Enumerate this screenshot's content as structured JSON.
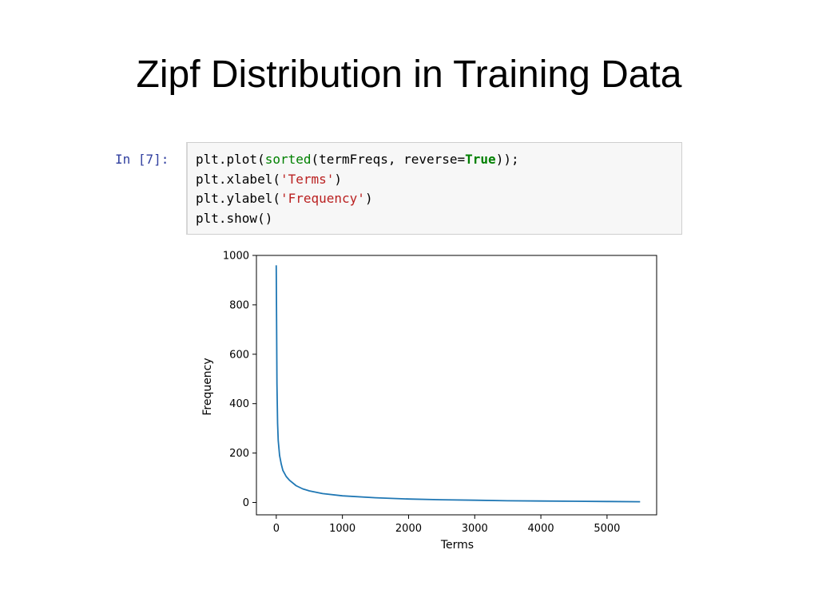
{
  "slide": {
    "title": "Zipf Distribution in Training Data"
  },
  "notebook": {
    "prompt": "In [7]:",
    "code": {
      "line1": {
        "a": "plt.plot(",
        "b": "sorted",
        "c": "(termFreqs, reverse=",
        "d": "True",
        "e": "));"
      },
      "line2": {
        "a": "plt.xlabel(",
        "b": "'Terms'",
        "c": ")"
      },
      "line3": {
        "a": "plt.ylabel(",
        "b": "'Frequency'",
        "c": ")"
      },
      "line4": {
        "a": "plt.show()"
      }
    }
  },
  "chart_data": {
    "type": "line",
    "title": "",
    "xlabel": "Terms",
    "ylabel": "Frequency",
    "xlim": [
      -300,
      5750
    ],
    "ylim": [
      -50,
      1000
    ],
    "x_ticks": [
      0,
      1000,
      2000,
      3000,
      4000,
      5000
    ],
    "y_ticks": [
      0,
      200,
      400,
      600,
      800,
      1000
    ],
    "grid": false,
    "line_color": "#1f77b4",
    "series": [
      {
        "x": [
          0,
          5,
          10,
          20,
          30,
          50,
          75,
          100,
          150,
          200,
          300,
          400,
          500,
          700,
          1000,
          1500,
          2000,
          2500,
          3000,
          3500,
          4000,
          4500,
          5000,
          5500
        ],
        "y": [
          960,
          700,
          480,
          320,
          250,
          190,
          155,
          130,
          105,
          90,
          68,
          55,
          47,
          36,
          27,
          19,
          14,
          11,
          9,
          7,
          6,
          5,
          4,
          3
        ]
      }
    ]
  }
}
